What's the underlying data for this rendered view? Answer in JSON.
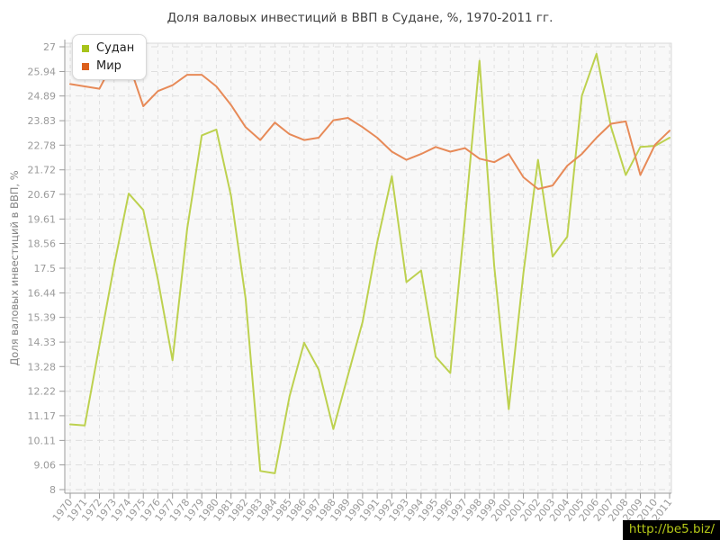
{
  "title": "Доля валовых инвестиций в ВВП в Судане, %, 1970-2011 гг.",
  "watermark": "http://be5.biz/",
  "y_axis": {
    "title": "Доля валовых инвестиций в ВВП, %",
    "tick_labels": [
      "27",
      "25.94",
      "24.89",
      "23.83",
      "22.78",
      "21.72",
      "20.67",
      "19.61",
      "18.56",
      "17.5",
      "16.44",
      "15.39",
      "14.33",
      "13.28",
      "12.22",
      "11.17",
      "10.11",
      "9.06",
      "8"
    ]
  },
  "x_axis": {
    "tick_labels": [
      "1970",
      "1971",
      "1972",
      "1973",
      "1974",
      "1975",
      "1976",
      "1977",
      "1978",
      "1979",
      "1980",
      "1981",
      "1982",
      "1983",
      "1984",
      "1985",
      "1986",
      "1987",
      "1988",
      "1989",
      "1990",
      "1991",
      "1992",
      "1993",
      "1994",
      "1995",
      "1996",
      "1997",
      "1998",
      "1999",
      "2000",
      "2001",
      "2002",
      "2003",
      "2004",
      "2005",
      "2006",
      "2007",
      "2008",
      "2009",
      "2010",
      "2011"
    ]
  },
  "legend": {
    "items": [
      {
        "label": "Судан",
        "color": "#a7c31b",
        "swatch_style": "background:#a7c31b"
      },
      {
        "label": "Мир",
        "color": "#dc5f1c",
        "swatch_style": "background:#dc5f1c"
      }
    ]
  },
  "chart_data": {
    "type": "line",
    "title": "Доля валовых инвестиций в ВВП в Судане, %, 1970-2011 гг.",
    "xlabel": "",
    "ylabel": "Доля валовых инвестиций в ВВП, %",
    "ylim": [
      8,
      27
    ],
    "y_ticks": [
      27,
      25.94,
      24.89,
      23.83,
      22.78,
      21.72,
      20.67,
      19.61,
      18.56,
      17.5,
      16.44,
      15.39,
      14.33,
      13.28,
      12.22,
      11.17,
      10.11,
      9.06,
      8
    ],
    "grid": "dashed",
    "legend_position": "top-left",
    "x": [
      1970,
      1971,
      1972,
      1973,
      1974,
      1975,
      1976,
      1977,
      1978,
      1979,
      1980,
      1981,
      1982,
      1983,
      1984,
      1985,
      1986,
      1987,
      1988,
      1989,
      1990,
      1991,
      1992,
      1993,
      1994,
      1995,
      1996,
      1997,
      1998,
      1999,
      2000,
      2001,
      2002,
      2003,
      2004,
      2005,
      2006,
      2007,
      2008,
      2009,
      2010,
      2011
    ],
    "series": [
      {
        "id": "sudan",
        "name": "Судан",
        "color": "#bdd14f",
        "values": [
          10.8,
          10.75,
          14.2,
          17.6,
          20.7,
          20.0,
          17.0,
          13.55,
          19.2,
          23.2,
          23.45,
          20.6,
          16.2,
          8.8,
          8.7,
          12.0,
          14.3,
          13.15,
          10.6,
          12.9,
          15.2,
          18.6,
          21.45,
          16.9,
          17.4,
          13.7,
          13.0,
          19.6,
          26.4,
          17.6,
          11.45,
          17.3,
          22.15,
          18.0,
          18.85,
          24.9,
          26.7,
          23.55,
          21.5,
          22.7,
          22.75,
          23.1
        ]
      },
      {
        "id": "mir",
        "name": "Мир",
        "color": "#e78a58",
        "values": [
          25.4,
          25.3,
          25.2,
          26.4,
          26.3,
          24.45,
          25.1,
          25.35,
          25.8,
          25.8,
          25.3,
          24.5,
          23.55,
          23.0,
          23.75,
          23.25,
          23.0,
          23.1,
          23.85,
          23.95,
          23.55,
          23.1,
          22.5,
          22.15,
          22.4,
          22.7,
          22.5,
          22.65,
          22.2,
          22.05,
          22.4,
          21.4,
          20.9,
          21.05,
          21.9,
          22.4,
          23.1,
          23.7,
          23.8,
          21.5,
          22.8,
          23.4
        ]
      }
    ]
  }
}
